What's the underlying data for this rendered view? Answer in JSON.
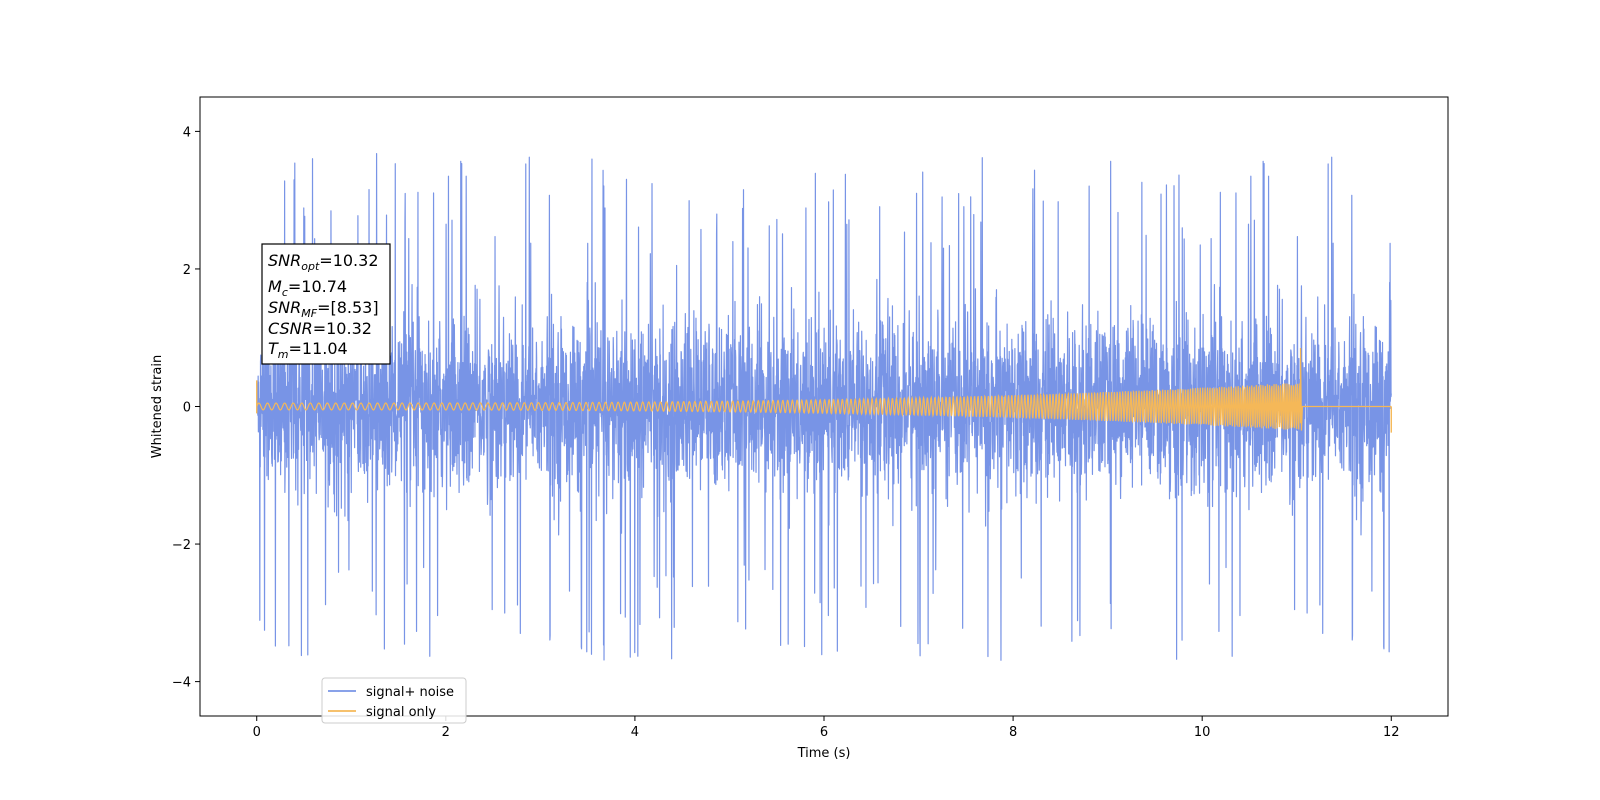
{
  "chart_data": {
    "type": "line",
    "xlabel": "Time (s)",
    "ylabel": "Whitened strain",
    "xlim": [
      -0.6,
      12.6
    ],
    "ylim": [
      -4.5,
      4.5
    ],
    "xticks": [
      0,
      2,
      4,
      6,
      8,
      10,
      12
    ],
    "yticks": [
      -4,
      -2,
      0,
      2,
      4
    ],
    "x_range": [
      0,
      12
    ],
    "grid": false,
    "legend_position": "lower-left",
    "series": [
      {
        "name": "signal+ noise",
        "color": "#7894e6",
        "envelope_approx": {
          "typical_band": [
            -1.5,
            1.6
          ],
          "upper_peak_max": 4.14,
          "lower_peak_min": -4.06
        }
      },
      {
        "name": "signal only",
        "color": "#f5b858",
        "description": "chirp",
        "amplitude_start": 0.05,
        "amplitude_end": 0.35,
        "merger_time": 11.04,
        "merger_peak": 0.85,
        "end_time": 12.0
      }
    ],
    "annotations": [
      {
        "base": "SNR",
        "sub": "opt",
        "value": "=10.32"
      },
      {
        "base": "M",
        "sub": "c",
        "value": "=10.74"
      },
      {
        "base": "SNR",
        "sub": "MF",
        "value": "=[8.53]"
      },
      {
        "base": "CSNR",
        "sub": "",
        "value": "=10.32"
      },
      {
        "base": "T",
        "sub": "m",
        "value": "=11.04"
      }
    ]
  }
}
